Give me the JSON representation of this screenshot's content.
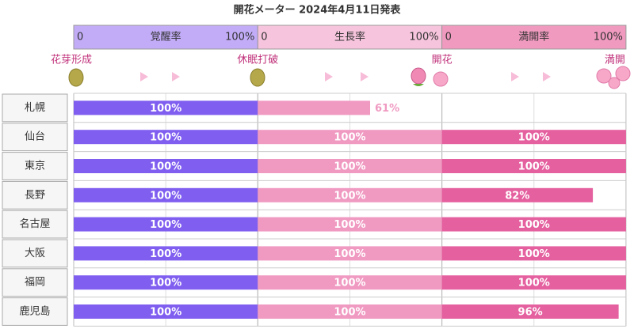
{
  "chart_data": {
    "type": "meter",
    "title": "開花メーター 2024年4月11日発表",
    "categories": [
      "札幌",
      "仙台",
      "東京",
      "長野",
      "名古屋",
      "大阪",
      "福岡",
      "鹿児島"
    ],
    "milestones": [
      "花芽形成",
      "休眠打破",
      "開花",
      "満開"
    ],
    "xlim": [
      0,
      100
    ],
    "xticks": [
      {
        "value": 0,
        "label": "0"
      },
      {
        "value": 100,
        "label": "100%"
      }
    ],
    "series": [
      {
        "name": "覚醒率",
        "color": "#7f5ef0",
        "header_color": "#c2acf8",
        "values": [
          100,
          100,
          100,
          100,
          100,
          100,
          100,
          100
        ],
        "value_labels": [
          "100%",
          "100%",
          "100%",
          "100%",
          "100%",
          "100%",
          "100%",
          "100%"
        ]
      },
      {
        "name": "生長率",
        "color": "#f09ac2",
        "header_color": "#f6c4dc",
        "values": [
          61,
          100,
          100,
          100,
          100,
          100,
          100,
          100
        ],
        "value_labels": [
          "61%",
          "100%",
          "100%",
          "100%",
          "100%",
          "100%",
          "100%",
          "100%"
        ]
      },
      {
        "name": "満開率",
        "color": "#e4609f",
        "header_color": "#f09abf",
        "values": [
          null,
          100,
          100,
          82,
          100,
          100,
          100,
          96
        ],
        "value_labels": [
          null,
          "100%",
          "100%",
          "82%",
          "100%",
          "100%",
          "100%",
          "96%"
        ]
      }
    ]
  }
}
